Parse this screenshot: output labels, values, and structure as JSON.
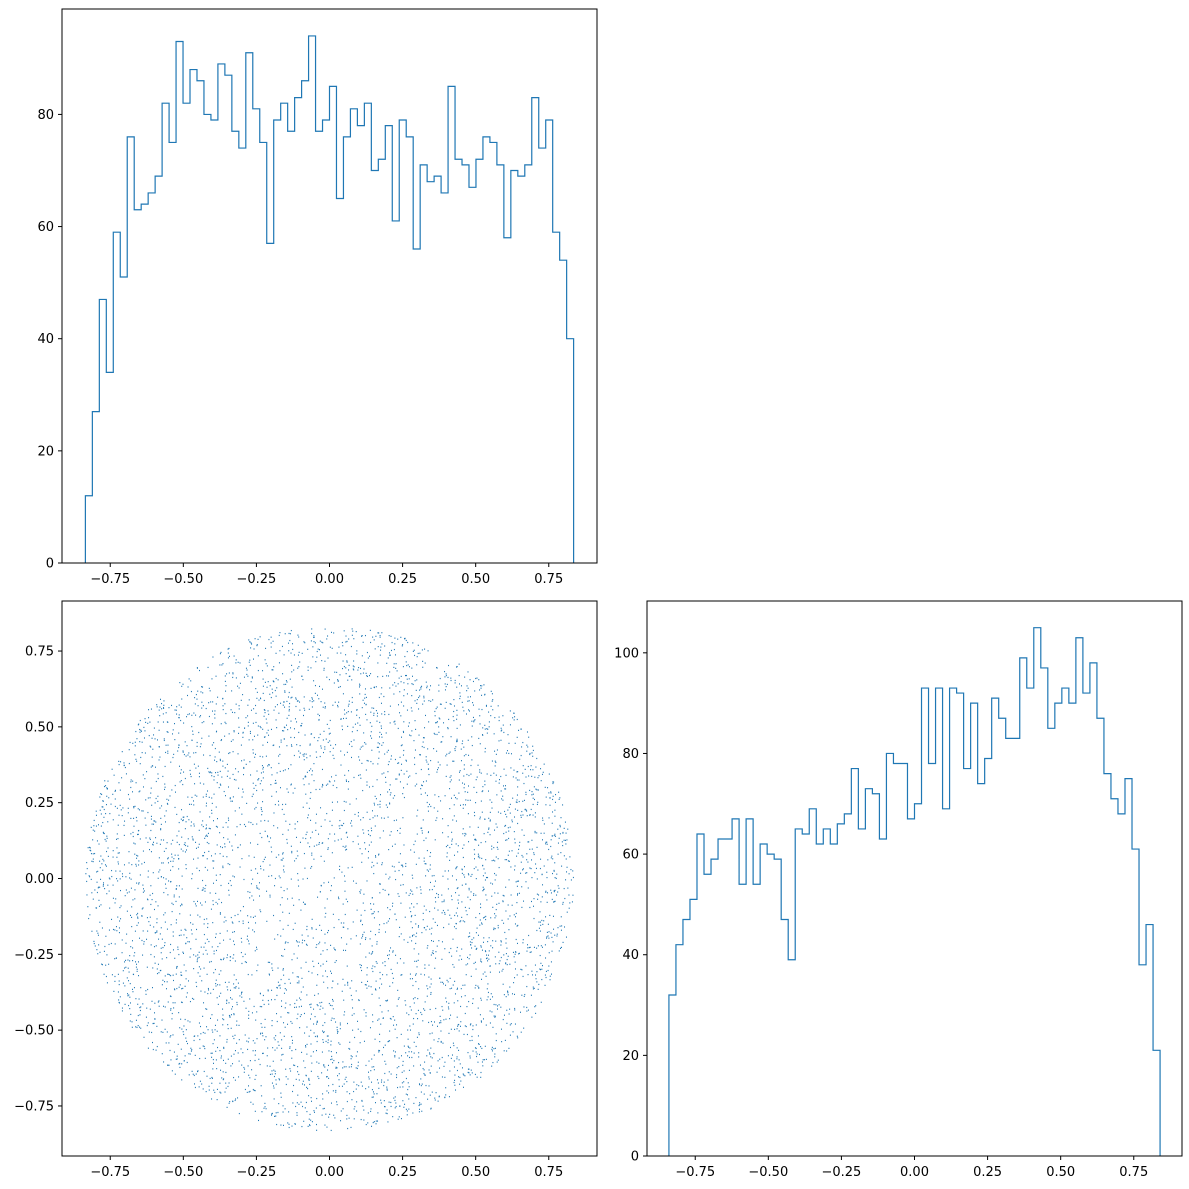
{
  "colors": {
    "series": "#1f77b4",
    "axes": "#000000",
    "background": "#ffffff"
  },
  "chart_data": [
    {
      "panel": "top-left",
      "type": "histogram-step",
      "title": "",
      "xlabel": "",
      "ylabel": "",
      "xlim": [
        -0.915,
        0.915
      ],
      "ylim": [
        0,
        98.8
      ],
      "grid": false,
      "xticks": [
        {
          "value": -0.75,
          "label": "−0.75"
        },
        {
          "value": -0.5,
          "label": "−0.50"
        },
        {
          "value": -0.25,
          "label": "−0.25"
        },
        {
          "value": 0.0,
          "label": "0.00"
        },
        {
          "value": 0.25,
          "label": "0.25"
        },
        {
          "value": 0.5,
          "label": "0.50"
        },
        {
          "value": 0.75,
          "label": "0.75"
        }
      ],
      "yticks": [
        {
          "value": 0,
          "label": "0"
        },
        {
          "value": 20,
          "label": "20"
        },
        {
          "value": 40,
          "label": "40"
        },
        {
          "value": 60,
          "label": "60"
        },
        {
          "value": 80,
          "label": "80"
        }
      ],
      "bin_start": -0.835,
      "bin_end": 0.835,
      "counts": [
        12,
        27,
        47,
        34,
        59,
        51,
        76,
        63,
        64,
        66,
        69,
        82,
        75,
        93,
        82,
        88,
        86,
        80,
        79,
        89,
        87,
        77,
        74,
        91,
        81,
        75,
        57,
        79,
        82,
        77,
        83,
        86,
        94,
        77,
        79,
        85,
        65,
        76,
        81,
        78,
        82,
        70,
        72,
        78,
        61,
        79,
        76,
        56,
        71,
        68,
        69,
        66,
        85,
        72,
        71,
        67,
        72,
        76,
        75,
        71,
        58,
        70,
        69,
        71,
        83,
        74,
        79,
        59,
        54,
        40
      ]
    },
    {
      "panel": "bottom-left",
      "type": "scatter",
      "title": "",
      "xlabel": "",
      "ylabel": "",
      "xlim": [
        -0.915,
        0.915
      ],
      "ylim": [
        -0.915,
        0.915
      ],
      "grid": false,
      "radius": 0.835,
      "point_count": 5000,
      "density": "points uniformly filling a disk of radius ≈ 0.835 centered at (0, 0), denser near the rim",
      "xticks": [
        {
          "value": -0.75,
          "label": "−0.75"
        },
        {
          "value": -0.5,
          "label": "−0.50"
        },
        {
          "value": -0.25,
          "label": "−0.25"
        },
        {
          "value": 0.0,
          "label": "0.00"
        },
        {
          "value": 0.25,
          "label": "0.25"
        },
        {
          "value": 0.5,
          "label": "0.50"
        },
        {
          "value": 0.75,
          "label": "0.75"
        }
      ],
      "yticks": [
        {
          "value": -0.75,
          "label": "−0.75"
        },
        {
          "value": -0.5,
          "label": "−0.50"
        },
        {
          "value": -0.25,
          "label": "−0.25"
        },
        {
          "value": 0.0,
          "label": "0.00"
        },
        {
          "value": 0.25,
          "label": "0.25"
        },
        {
          "value": 0.5,
          "label": "0.50"
        },
        {
          "value": 0.75,
          "label": "0.75"
        }
      ]
    },
    {
      "panel": "bottom-right",
      "type": "histogram-step",
      "title": "",
      "xlabel": "",
      "ylabel": "",
      "xlim": [
        -0.915,
        0.915
      ],
      "ylim": [
        0,
        110.3
      ],
      "grid": false,
      "xticks": [
        {
          "value": -0.75,
          "label": "−0.75"
        },
        {
          "value": -0.5,
          "label": "−0.50"
        },
        {
          "value": -0.25,
          "label": "−0.25"
        },
        {
          "value": 0.0,
          "label": "0.00"
        },
        {
          "value": 0.25,
          "label": "0.25"
        },
        {
          "value": 0.5,
          "label": "0.50"
        },
        {
          "value": 0.75,
          "label": "0.75"
        }
      ],
      "yticks": [
        {
          "value": 0,
          "label": "0"
        },
        {
          "value": 20,
          "label": "20"
        },
        {
          "value": 40,
          "label": "40"
        },
        {
          "value": 60,
          "label": "60"
        },
        {
          "value": 80,
          "label": "80"
        },
        {
          "value": 100,
          "label": "100"
        }
      ],
      "bin_start": -0.84,
      "bin_end": 0.84,
      "counts": [
        32,
        42,
        47,
        51,
        64,
        56,
        59,
        63,
        63,
        67,
        54,
        67,
        54,
        62,
        60,
        59,
        47,
        39,
        65,
        64,
        69,
        62,
        65,
        62,
        66,
        68,
        77,
        65,
        73,
        72,
        63,
        80,
        78,
        78,
        67,
        70,
        93,
        78,
        93,
        69,
        93,
        92,
        77,
        90,
        74,
        79,
        91,
        87,
        83,
        83,
        99,
        93,
        105,
        97,
        85,
        90,
        93,
        90,
        103,
        92,
        98,
        87,
        76,
        71,
        68,
        75,
        61,
        38,
        46,
        21
      ]
    }
  ]
}
